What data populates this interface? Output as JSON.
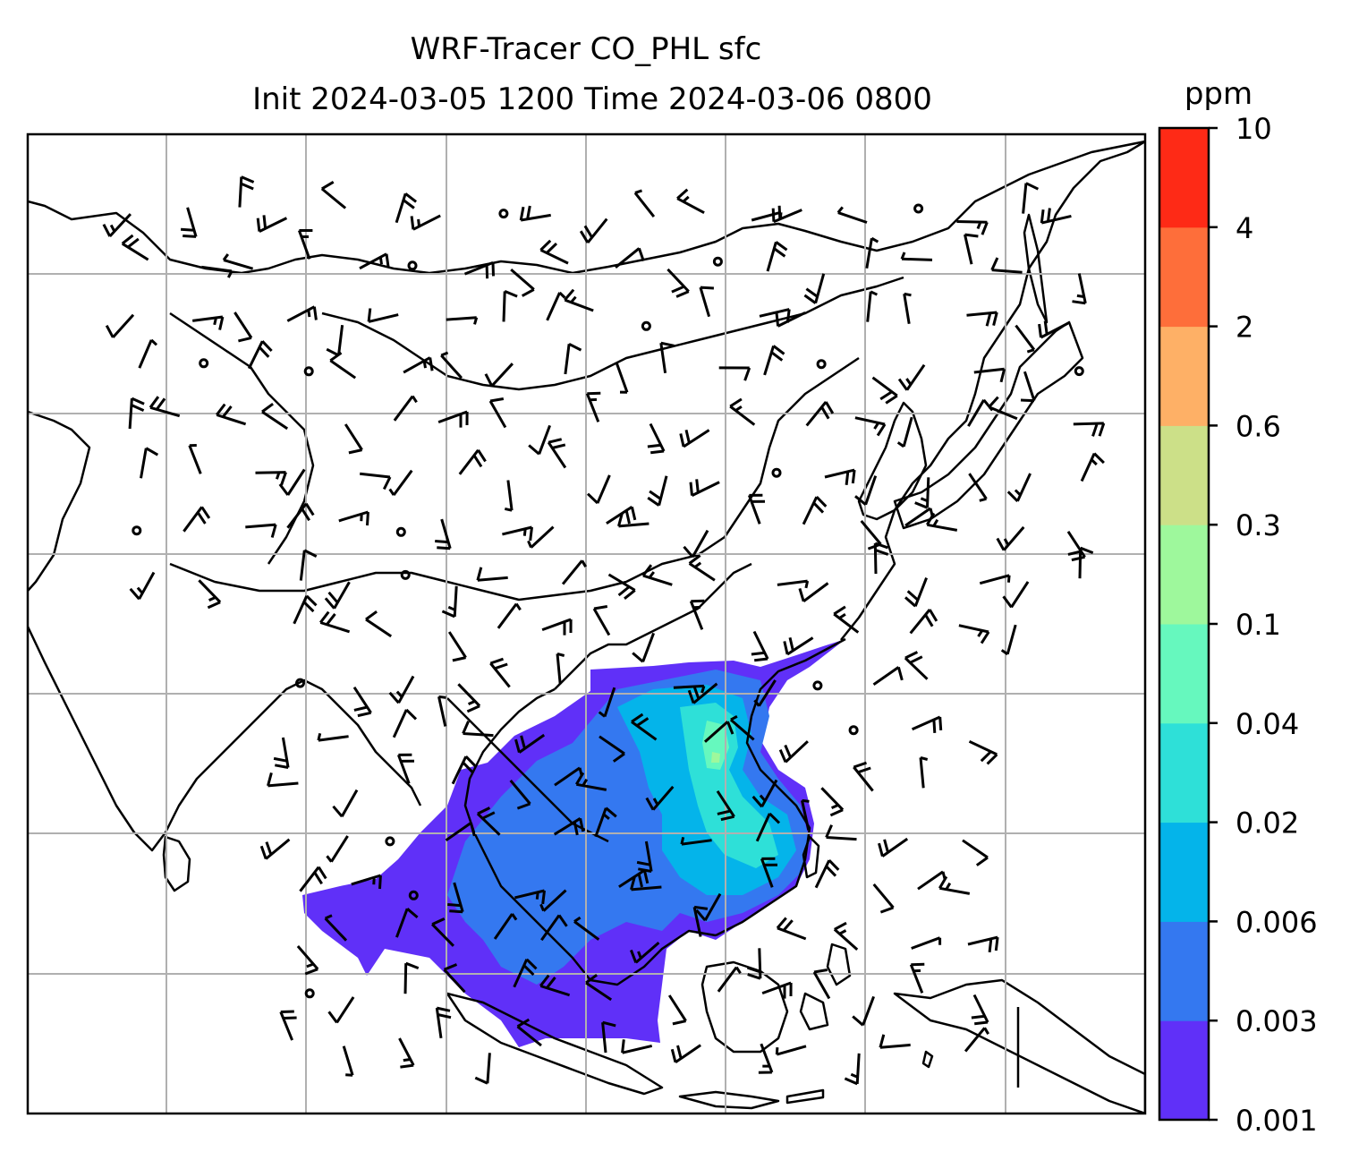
{
  "title": {
    "line1": "WRF-Tracer CO_PHL sfc",
    "line2": "Init 2024-03-05 1200 Time 2024-03-06 0800"
  },
  "colorbar": {
    "unit": "ppm",
    "levels": [
      {
        "label": "0.001",
        "color": "#6030f8"
      },
      {
        "label": "0.003",
        "color": "#3478f0"
      },
      {
        "label": "0.006",
        "color": "#04b4ea"
      },
      {
        "label": "0.02",
        "color": "#2ee0d8"
      },
      {
        "label": "0.04",
        "color": "#66f8be"
      },
      {
        "label": "0.1",
        "color": "#9ef89c"
      },
      {
        "label": "0.3",
        "color": "#cce088"
      },
      {
        "label": "0.6",
        "color": "#feb066"
      },
      {
        "label": "2",
        "color": "#fe6e3a"
      },
      {
        "label": "4",
        "color": "#fe2a16"
      },
      {
        "label": "10",
        "color": null
      }
    ]
  },
  "map": {
    "grid": "on",
    "wind_symbols": "barbs",
    "calm_symbol": "circle"
  }
}
